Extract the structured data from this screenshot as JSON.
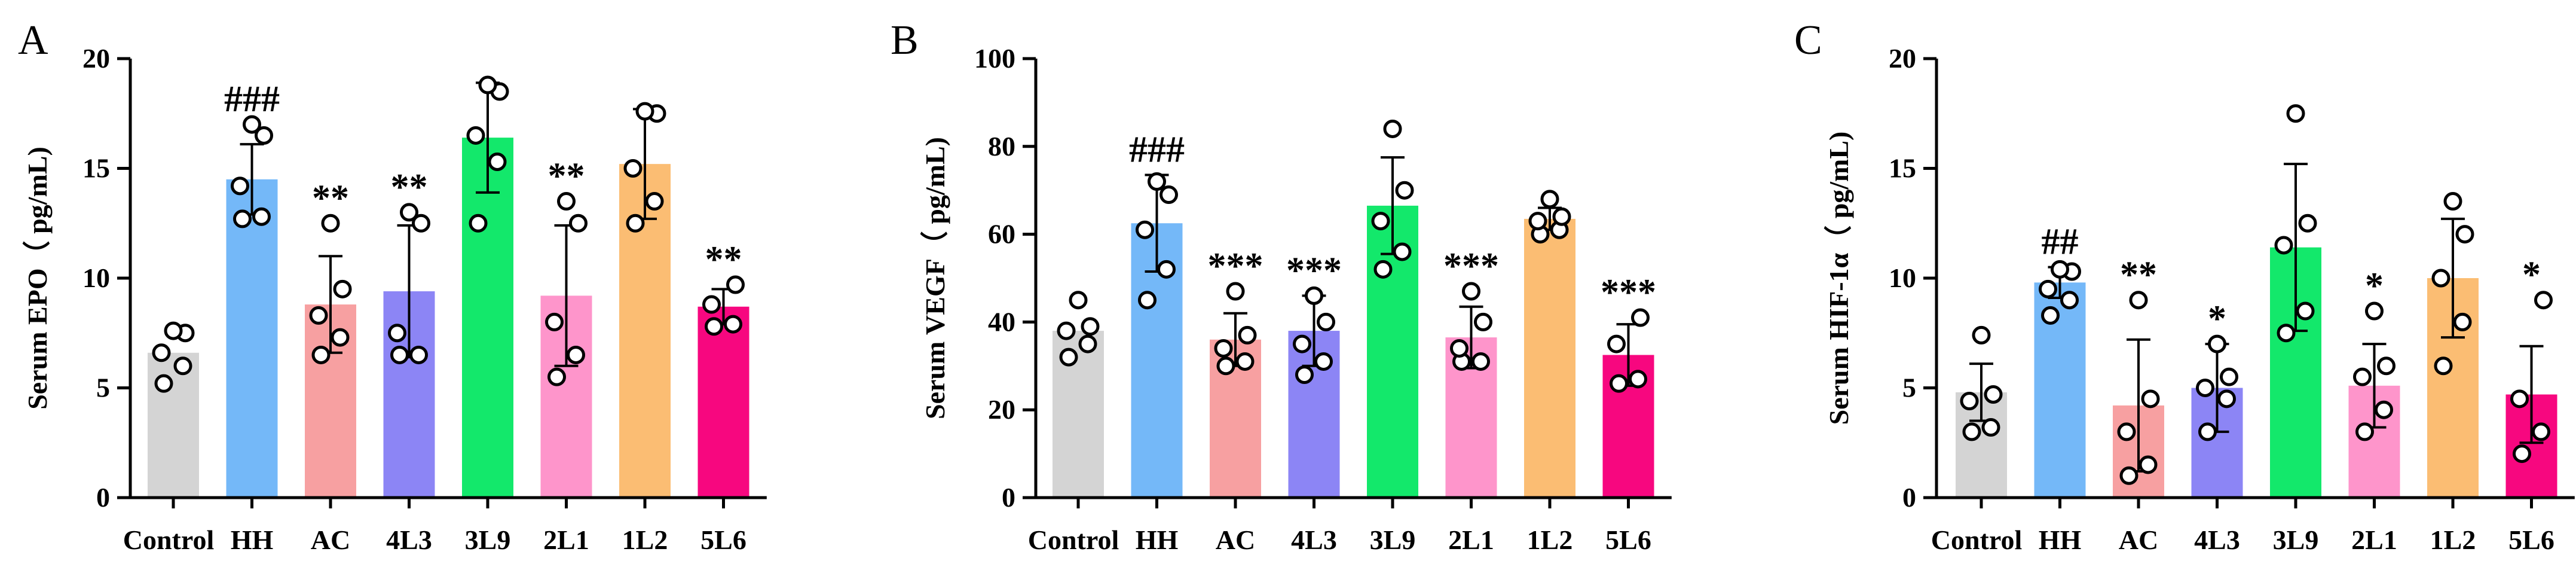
{
  "colors": {
    "Control": "#d4d4d4",
    "HH": "#74b8f8",
    "AC": "#f7a0a1",
    "4L3": "#8c85f5",
    "3L9": "#13e86b",
    "2L1": "#fe95cb",
    "1L2": "#fbbd73",
    "5L6": "#f7077f",
    "axis": "#000000",
    "point_stroke": "#000000",
    "point_fill": "#ffffff"
  },
  "chart_data": [
    {
      "panel": "A",
      "type": "bar",
      "ylabel": "Serum EPO（ pg/mL)",
      "ylim": [
        0,
        20
      ],
      "yticks": [
        "0",
        "5",
        "10",
        "15",
        "20"
      ],
      "categories": [
        "Control",
        "HH",
        "AC",
        "4L3",
        "3L9",
        "2L1",
        "1L2",
        "5L6"
      ],
      "values": [
        6.6,
        14.5,
        8.8,
        9.4,
        16.4,
        9.2,
        15.2,
        8.7
      ],
      "sd": [
        0.0,
        1.6,
        2.2,
        3.0,
        2.5,
        3.2,
        2.5,
        0.8
      ],
      "points": [
        [
          5.2,
          6.0,
          6.6,
          7.5,
          7.6
        ],
        [
          12.7,
          12.8,
          14.2,
          16.5,
          17.0
        ],
        [
          6.5,
          7.3,
          8.3,
          9.5,
          12.5
        ],
        [
          6.5,
          6.5,
          7.5,
          12.5,
          13.0
        ],
        [
          12.5,
          15.3,
          16.5,
          18.5,
          18.8
        ],
        [
          5.5,
          6.5,
          8.0,
          12.5,
          13.5
        ],
        [
          12.5,
          13.5,
          15.0,
          17.5,
          17.6
        ],
        [
          7.8,
          7.9,
          8.8,
          9.7
        ]
      ],
      "significance": [
        "",
        "###",
        "**",
        "**",
        "",
        "**",
        "",
        "**"
      ]
    },
    {
      "panel": "B",
      "type": "bar",
      "ylabel": "Serum VEGF（ pg/mL)",
      "ylim": [
        0,
        100
      ],
      "yticks": [
        "0",
        "20",
        "40",
        "60",
        "80",
        "100"
      ],
      "categories": [
        "Control",
        "HH",
        "AC",
        "4L3",
        "3L9",
        "2L1",
        "1L2",
        "5L6"
      ],
      "values": [
        38,
        62.5,
        36,
        38,
        66.5,
        36.5,
        63.5,
        32.5
      ],
      "sd": [
        0.0,
        11.0,
        6.0,
        8.0,
        11.0,
        7.0,
        2.5,
        7.0
      ],
      "points": [
        [
          32,
          35,
          38,
          39,
          45
        ],
        [
          45,
          52,
          61,
          69,
          72
        ],
        [
          30,
          31,
          34,
          37,
          47
        ],
        [
          28,
          31,
          35,
          40,
          46
        ],
        [
          52,
          56,
          63,
          70,
          84
        ],
        [
          31,
          31,
          34,
          40,
          47
        ],
        [
          60,
          61,
          63,
          64,
          68
        ],
        [
          26,
          27,
          35,
          41
        ]
      ],
      "significance": [
        "",
        "###",
        "***",
        "***",
        "",
        "***",
        "",
        "***"
      ]
    },
    {
      "panel": "C",
      "type": "bar",
      "ylabel": "Serum HIF-1α（ pg/mL)",
      "ylim": [
        0,
        20
      ],
      "yticks": [
        "0",
        "5",
        "10",
        "15",
        "20"
      ],
      "categories": [
        "Control",
        "HH",
        "AC",
        "4L3",
        "3L9",
        "2L1",
        "1L2",
        "5L6"
      ],
      "values": [
        4.8,
        9.8,
        4.2,
        5.0,
        11.4,
        5.1,
        10.0,
        4.7
      ],
      "sd": [
        1.3,
        0.7,
        3.0,
        2.0,
        3.8,
        1.9,
        2.7,
        2.2
      ],
      "points": [
        [
          3.0,
          3.2,
          4.4,
          4.7,
          7.4
        ],
        [
          8.3,
          9.0,
          9.5,
          10.3,
          10.4
        ],
        [
          1.0,
          1.5,
          3.0,
          4.5,
          9.0
        ],
        [
          3.0,
          4.5,
          5.0,
          5.5,
          7.0
        ],
        [
          7.5,
          8.5,
          11.5,
          12.5,
          17.5
        ],
        [
          3.0,
          4.0,
          5.5,
          6.0,
          8.5
        ],
        [
          6.0,
          8.0,
          10.0,
          12.0,
          13.5
        ],
        [
          2.0,
          3.0,
          4.5,
          9.0
        ]
      ],
      "significance": [
        "",
        "##",
        "**",
        "*",
        "",
        "*",
        "",
        "*"
      ]
    }
  ]
}
